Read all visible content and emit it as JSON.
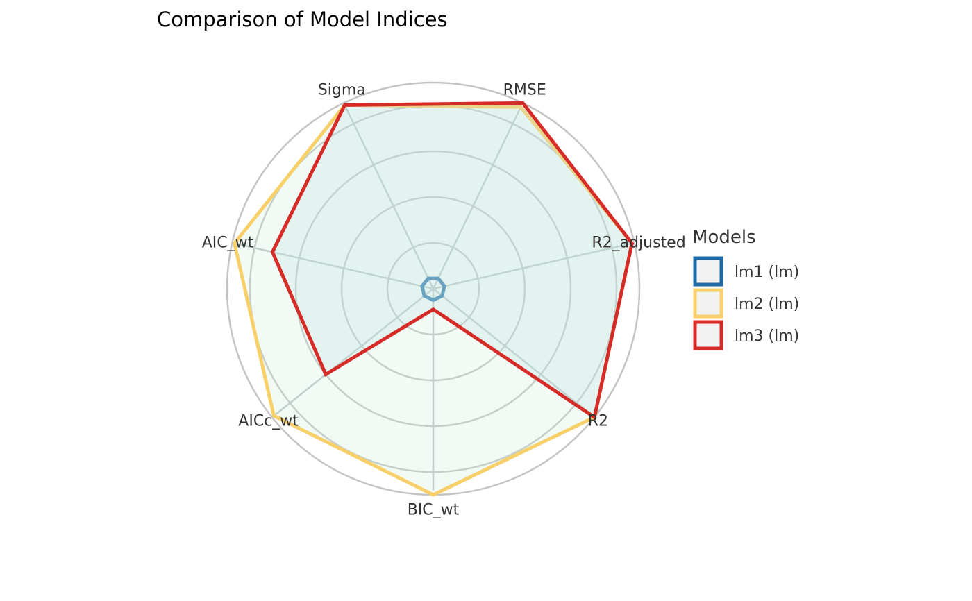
{
  "chart_data": {
    "type": "radar",
    "title": "Comparison of Model Indices",
    "axes": [
      "Sigma",
      "AIC_wt",
      "AICc_wt",
      "BIC_wt",
      "R2",
      "R2_adjusted",
      "RMSE"
    ],
    "rlim": [
      0,
      1
    ],
    "grid": true,
    "legend": {
      "title": "Models",
      "position": "right"
    },
    "series": [
      {
        "name": "lm1 (lm)",
        "color": "#1f6aa5",
        "values": [
          0.05,
          0.05,
          0.05,
          0.05,
          0.05,
          0.05,
          0.05
        ]
      },
      {
        "name": "lm2 (lm)",
        "color": "#f8d06a",
        "values": [
          0.89,
          0.89,
          0.89,
          0.9,
          0.9,
          0.89,
          0.88
        ]
      },
      {
        "name": "lm3 (lm)",
        "color": "#d62c27",
        "values": [
          0.89,
          0.72,
          0.6,
          0.09,
          0.9,
          0.89,
          0.9
        ]
      }
    ]
  }
}
